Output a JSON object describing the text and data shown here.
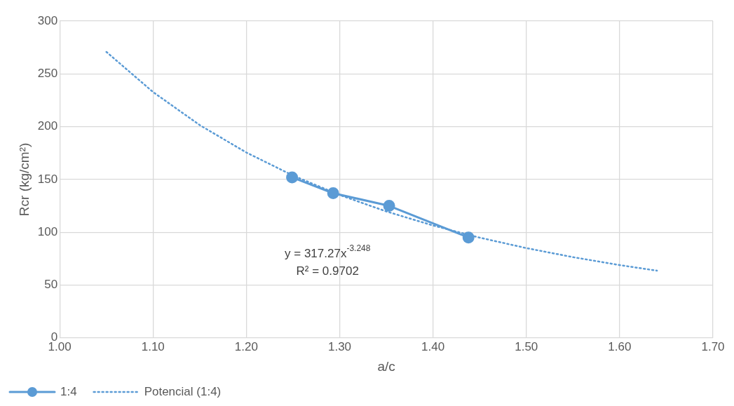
{
  "chart_data": {
    "type": "line",
    "xlabel": "a/c",
    "ylabel": "Rcr (kg/cm²)",
    "xlim": [
      1.0,
      1.7
    ],
    "xticks": [
      {
        "value": 1.0,
        "label": "1.00"
      },
      {
        "value": 1.1,
        "label": "1.10"
      },
      {
        "value": 1.2,
        "label": "1.20"
      },
      {
        "value": 1.3,
        "label": "1.30"
      },
      {
        "value": 1.4,
        "label": "1.40"
      },
      {
        "value": 1.5,
        "label": "1.50"
      },
      {
        "value": 1.6,
        "label": "1.60"
      },
      {
        "value": 1.7,
        "label": "1.70"
      }
    ],
    "ylim": [
      0,
      300
    ],
    "yticks": [
      0,
      50,
      100,
      150,
      200,
      250,
      300
    ],
    "grid": true,
    "legend": "bottom left",
    "series": [
      {
        "name": "1:4",
        "color": "#5b9bd5",
        "marker": "circle",
        "line_style": "solid",
        "x": [
          1.249,
          1.293,
          1.353,
          1.438
        ],
        "values": [
          152,
          137,
          125,
          95
        ]
      },
      {
        "name": "Potencial (1:4)",
        "color": "#5b9bd5",
        "marker": "none",
        "line_style": "dotted",
        "x": [
          1.05,
          1.1,
          1.15,
          1.2,
          1.25,
          1.3,
          1.35,
          1.4,
          1.45,
          1.5,
          1.55,
          1.6,
          1.64
        ],
        "values": [
          270.8,
          232.8,
          201.5,
          175.5,
          153.7,
          135.3,
          119.7,
          106.4,
          94.9,
          85.0,
          76.4,
          68.9,
          63.6
        ]
      }
    ],
    "annotations": [
      "y = 317.27x$^{-3.248}$",
      "R² = 0.9702"
    ]
  }
}
